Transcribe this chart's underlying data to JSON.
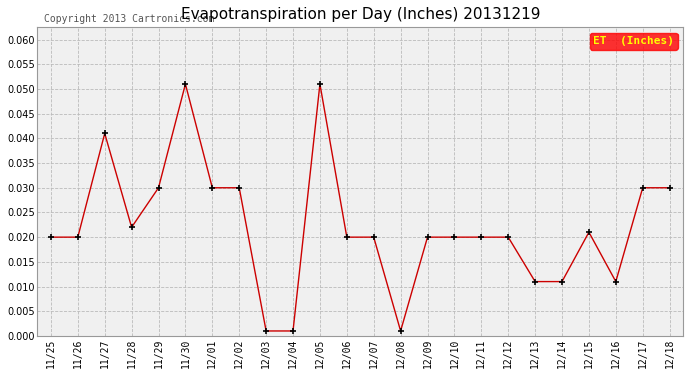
{
  "title": "Evapotranspiration per Day (Inches) 20131219",
  "copyright": "Copyright 2013 Cartronics.com",
  "legend_label": "ET  (Inches)",
  "legend_bg": "#FF0000",
  "legend_fg": "#FFFF00",
  "x_labels": [
    "11/25",
    "11/26",
    "11/27",
    "11/28",
    "11/29",
    "11/30",
    "12/01",
    "12/02",
    "12/03",
    "12/04",
    "12/05",
    "12/06",
    "12/07",
    "12/08",
    "12/09",
    "12/10",
    "12/11",
    "12/12",
    "12/13",
    "12/14",
    "12/15",
    "12/16",
    "12/17",
    "12/18"
  ],
  "y_values": [
    0.02,
    0.02,
    0.041,
    0.022,
    0.03,
    0.051,
    0.03,
    0.03,
    0.001,
    0.001,
    0.051,
    0.02,
    0.02,
    0.001,
    0.02,
    0.02,
    0.02,
    0.02,
    0.011,
    0.011,
    0.021,
    0.011,
    0.03,
    0.03
  ],
  "line_color": "#CC0000",
  "marker_color": "#000000",
  "marker_size": 4,
  "ylim": [
    0.0,
    0.0625
  ],
  "yticks": [
    0.0,
    0.005,
    0.01,
    0.015,
    0.02,
    0.025,
    0.03,
    0.035,
    0.04,
    0.045,
    0.05,
    0.055,
    0.06
  ],
  "bg_color": "#FFFFFF",
  "plot_bg_color": "#F0F0F0",
  "grid_color": "#BBBBBB",
  "title_fontsize": 11,
  "tick_fontsize": 7,
  "copyright_fontsize": 7,
  "copyright_color": "#555555"
}
